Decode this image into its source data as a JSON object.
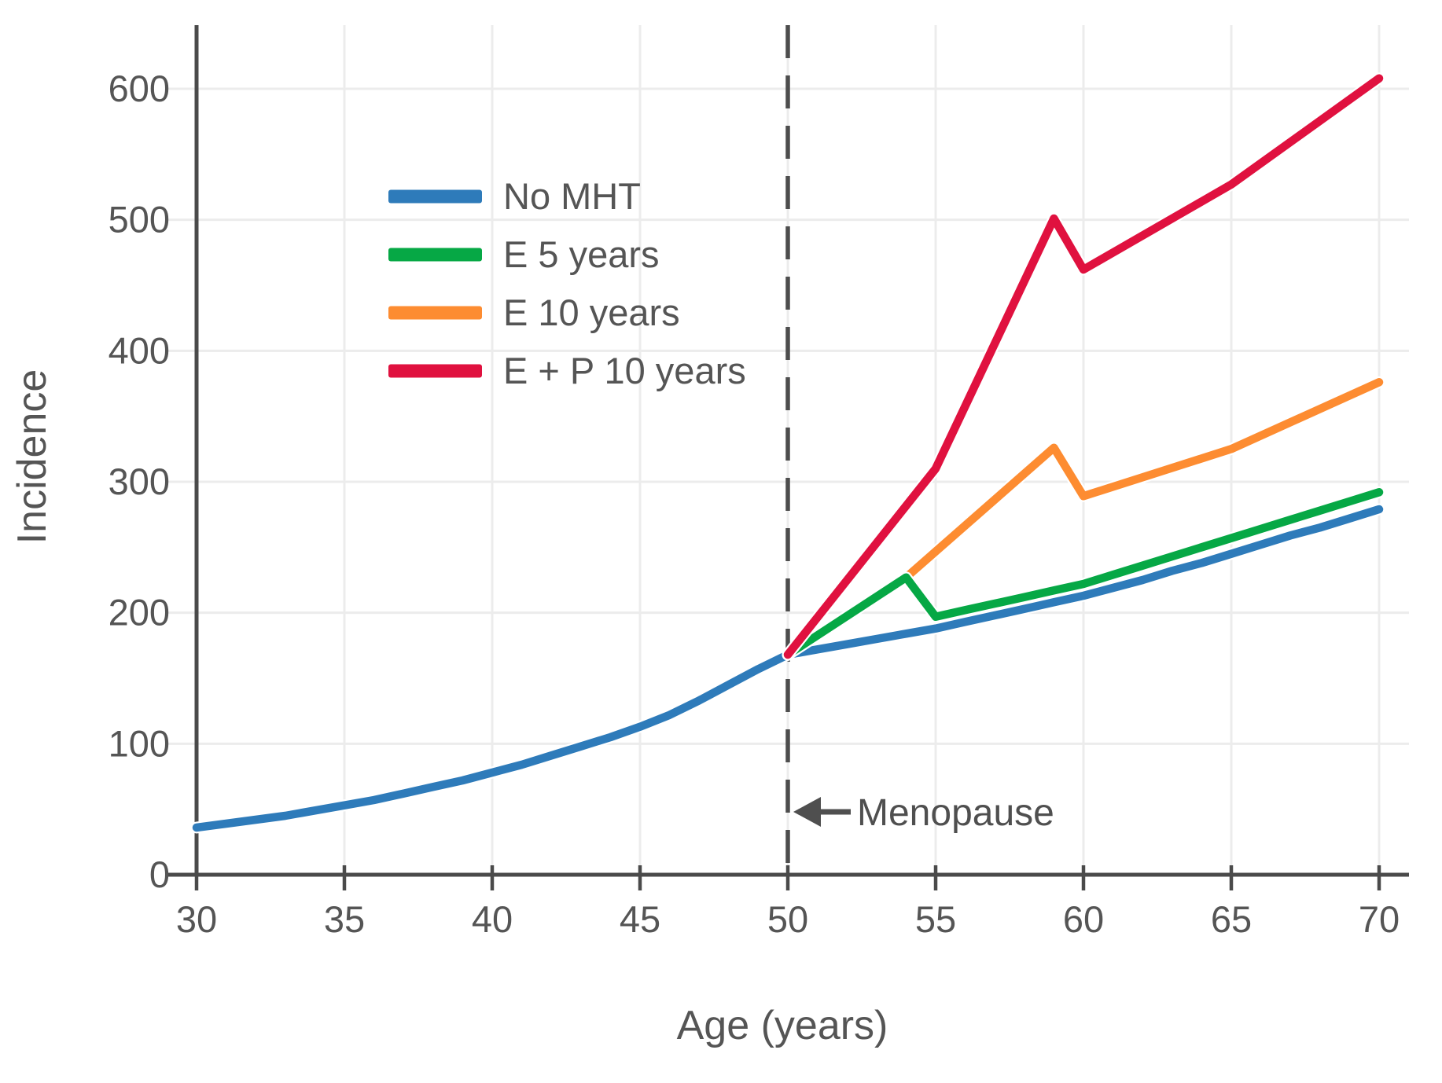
{
  "chart_data": {
    "type": "line",
    "title": "",
    "xlabel": "Age (years)",
    "ylabel": "Incidence",
    "xlim": [
      29,
      71
    ],
    "ylim": [
      0,
      650
    ],
    "x_ticks": [
      30,
      35,
      40,
      45,
      50,
      55,
      60,
      65,
      70
    ],
    "y_ticks": [
      0,
      100,
      200,
      300,
      400,
      500,
      600
    ],
    "grid": true,
    "legend_position": "upper-left-inside",
    "series": [
      {
        "name": "No MHT",
        "color": "#2e7bba",
        "points": [
          [
            30,
            36
          ],
          [
            31,
            39
          ],
          [
            32,
            42
          ],
          [
            33,
            45
          ],
          [
            34,
            49
          ],
          [
            35,
            53
          ],
          [
            36,
            57
          ],
          [
            37,
            62
          ],
          [
            38,
            67
          ],
          [
            39,
            72
          ],
          [
            40,
            78
          ],
          [
            41,
            84
          ],
          [
            42,
            91
          ],
          [
            43,
            98
          ],
          [
            44,
            105
          ],
          [
            45,
            113
          ],
          [
            46,
            122
          ],
          [
            47,
            133
          ],
          [
            48,
            145
          ],
          [
            49,
            157
          ],
          [
            50,
            168
          ],
          [
            51,
            172
          ],
          [
            52,
            176
          ],
          [
            53,
            180
          ],
          [
            54,
            184
          ],
          [
            55,
            188
          ],
          [
            56,
            193
          ],
          [
            57,
            198
          ],
          [
            58,
            203
          ],
          [
            59,
            208
          ],
          [
            60,
            213
          ],
          [
            61,
            219
          ],
          [
            62,
            225
          ],
          [
            63,
            232
          ],
          [
            64,
            238
          ],
          [
            65,
            245
          ],
          [
            66,
            252
          ],
          [
            67,
            259
          ],
          [
            68,
            265
          ],
          [
            69,
            272
          ],
          [
            70,
            279
          ]
        ]
      },
      {
        "name": "E 5 years",
        "color": "#06a845",
        "points": [
          [
            50,
            168
          ],
          [
            54,
            227
          ],
          [
            55,
            197
          ],
          [
            56,
            202
          ],
          [
            57,
            207
          ],
          [
            58,
            212
          ],
          [
            59,
            217
          ],
          [
            60,
            222
          ],
          [
            61,
            229
          ],
          [
            62,
            236
          ],
          [
            63,
            243
          ],
          [
            64,
            250
          ],
          [
            65,
            257
          ],
          [
            66,
            264
          ],
          [
            67,
            271
          ],
          [
            68,
            278
          ],
          [
            69,
            285
          ],
          [
            70,
            292
          ]
        ]
      },
      {
        "name": "E 10 years",
        "color": "#fd8c31",
        "points": [
          [
            50,
            168
          ],
          [
            54,
            227
          ],
          [
            59,
            326
          ],
          [
            60,
            289
          ],
          [
            65,
            325
          ],
          [
            70,
            376
          ]
        ]
      },
      {
        "name": "E + P 10 years",
        "color": "#e0113f",
        "points": [
          [
            50,
            168
          ],
          [
            55,
            310
          ],
          [
            59,
            501
          ],
          [
            60,
            462
          ],
          [
            65,
            527
          ],
          [
            70,
            608
          ]
        ]
      }
    ],
    "vline": {
      "x": 50,
      "style": "dashed",
      "color": "#4d4d4d"
    },
    "annotation": {
      "text": "Menopause",
      "arrow": "left",
      "x": 50.2,
      "y": 48
    }
  }
}
